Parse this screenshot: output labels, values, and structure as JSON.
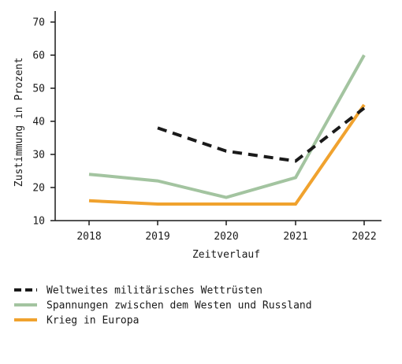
{
  "chart_data": {
    "type": "line",
    "title": "",
    "xlabel": "Zeitverlauf",
    "ylabel": "Zustimmung in Prozent",
    "x": [
      2018,
      2019,
      2020,
      2021,
      2022
    ],
    "x_tick_labels": [
      "2018",
      "2019",
      "2020",
      "2021",
      "2022"
    ],
    "ylim": [
      10,
      70
    ],
    "y_ticks": [
      10,
      20,
      30,
      40,
      50,
      60,
      70
    ],
    "y_tick_labels": [
      "10",
      "20",
      "30",
      "40",
      "50",
      "60",
      "70"
    ],
    "grid": false,
    "legend_position": "bottom",
    "series": [
      {
        "name": "Weltweites militärisches Wettrüsten",
        "color": "#1a1a1a",
        "dash": "dashed",
        "values": [
          null,
          38,
          31,
          28,
          44
        ]
      },
      {
        "name": "Spannungen zwischen dem Westen und Russland",
        "color": "#a3c4a0",
        "dash": "solid",
        "values": [
          24,
          22,
          17,
          23,
          60
        ]
      },
      {
        "name": "Krieg in Europa",
        "color": "#f0a22e",
        "dash": "solid",
        "values": [
          16,
          15,
          15,
          15,
          45
        ]
      }
    ]
  }
}
